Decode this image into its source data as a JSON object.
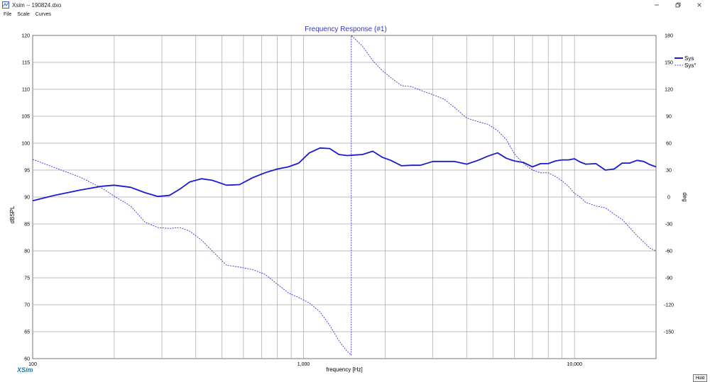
{
  "window": {
    "title": "Xsim -- 190824.dxo",
    "controls": {
      "minimize": "–",
      "restore": "❐",
      "close": "✕"
    }
  },
  "menu": [
    {
      "label": "File"
    },
    {
      "label": "Scale"
    },
    {
      "label": "Curves"
    }
  ],
  "brand": "XSim",
  "status": {
    "hold_label": "Hold"
  },
  "colors": {
    "curve": "#1a1ad0",
    "grid": "#a8a8a8",
    "title": "#3333cc",
    "brand": "#1a75a8"
  },
  "chart_data": {
    "type": "line",
    "title": "Frequency Response (#1)",
    "xlabel": "frequency [Hz]",
    "ylabel": "dBSPL",
    "ylabel_right": "deg",
    "x_scale": "log",
    "xlim": [
      100,
      20000
    ],
    "ylim": [
      60,
      120
    ],
    "ylim_right": [
      -180,
      180
    ],
    "grid": true,
    "legend_position": "top-right",
    "x_ticks": [
      {
        "value": 100,
        "label": "100"
      },
      {
        "value": 1000,
        "label": "1,000"
      },
      {
        "value": 10000,
        "label": "10,000"
      }
    ],
    "y_ticks": [
      "60",
      "65",
      "70",
      "75",
      "80",
      "85",
      "90",
      "95",
      "100",
      "105",
      "110",
      "115",
      "120"
    ],
    "y_ticks_right": [
      "-150",
      "-120",
      "-90",
      "-60",
      "-30",
      "0",
      "30",
      "60",
      "90",
      "120",
      "150",
      "180"
    ],
    "series": [
      {
        "name": "Sys",
        "style": "solid",
        "axis": "left",
        "x": [
          100,
          120,
          150,
          180,
          200,
          230,
          260,
          290,
          320,
          350,
          380,
          420,
          460,
          520,
          580,
          650,
          720,
          800,
          880,
          960,
          1050,
          1150,
          1250,
          1350,
          1450,
          1550,
          1650,
          1800,
          1950,
          2100,
          2300,
          2500,
          2700,
          3000,
          3300,
          3600,
          4000,
          4400,
          4800,
          5200,
          5600,
          6000,
          6500,
          7000,
          7500,
          8000,
          8500,
          9000,
          9500,
          10000,
          10500,
          11000,
          12000,
          13000,
          14000,
          15000,
          16000,
          17000,
          18000,
          19000,
          20000
        ],
        "y": [
          89.3,
          90.3,
          91.3,
          92.0,
          92.2,
          91.8,
          90.8,
          90.1,
          90.3,
          91.5,
          92.8,
          93.4,
          93.1,
          92.2,
          92.3,
          93.6,
          94.5,
          95.2,
          95.6,
          96.3,
          98.2,
          99.1,
          99.0,
          97.9,
          97.7,
          97.8,
          97.9,
          98.5,
          97.4,
          96.8,
          95.8,
          95.9,
          95.9,
          96.6,
          96.6,
          96.6,
          96.1,
          96.8,
          97.6,
          98.2,
          97.2,
          96.7,
          96.4,
          95.6,
          96.2,
          96.2,
          96.7,
          96.9,
          96.9,
          97.1,
          96.5,
          96.1,
          96.2,
          95.0,
          95.2,
          96.3,
          96.3,
          96.8,
          96.6,
          96.0,
          95.6
        ]
      },
      {
        "name": "Sys°",
        "style": "dashed",
        "axis": "right",
        "x": [
          100,
          120,
          150,
          180,
          200,
          230,
          260,
          290,
          320,
          350,
          380,
          420,
          460,
          520,
          580,
          650,
          720,
          800,
          880,
          960,
          1050,
          1150,
          1250,
          1350,
          1450,
          1500,
          1500,
          1550,
          1650,
          1800,
          1950,
          2100,
          2300,
          2500,
          2700,
          3000,
          3300,
          3600,
          4000,
          4400,
          4800,
          5200,
          5600,
          6000,
          6500,
          7000,
          7500,
          8000,
          8500,
          9000,
          9500,
          10000,
          10500,
          11000,
          12000,
          13000,
          14000,
          15000,
          16000,
          17000,
          18000,
          19000,
          20000
        ],
        "y": [
          42,
          33,
          22,
          10,
          1,
          -10,
          -28,
          -34,
          -35,
          -34,
          -38,
          -48,
          -60,
          -76,
          -78,
          -81,
          -86,
          -97,
          -107,
          -112,
          -118,
          -128,
          -143,
          -160,
          -172,
          -176,
          180,
          176,
          168,
          152,
          141,
          133,
          124,
          123,
          119,
          114,
          109,
          100,
          88,
          84,
          81,
          74,
          64,
          48,
          37,
          30,
          27,
          27,
          23,
          18,
          12,
          4,
          0,
          -6,
          -10,
          -12,
          -19,
          -25,
          -34,
          -43,
          -50,
          -57,
          -60
        ]
      }
    ]
  }
}
